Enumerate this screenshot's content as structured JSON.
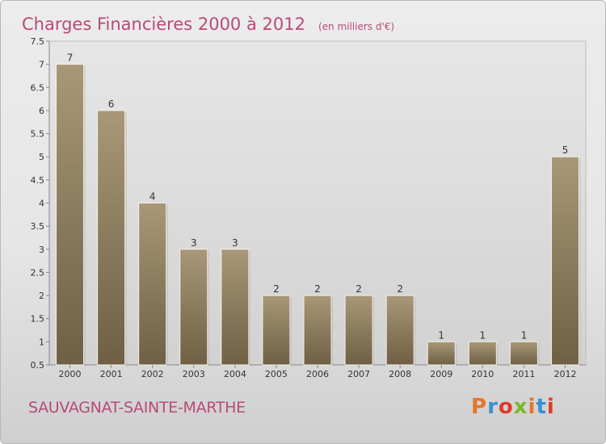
{
  "header": {
    "title": "Charges Financières 2000 à 2012",
    "unit": "(en milliers d'€)"
  },
  "footer": {
    "commune": "SAUVAGNAT-SAINTE-MARTHE",
    "logo": "Proxiti",
    "logo_colors": [
      "#e8742a",
      "#3a8fd0",
      "#e03a2a",
      "#7ab82a",
      "#e8742a",
      "#3a8fd0",
      "#e03a2a"
    ]
  },
  "colors": {
    "bar_light": "#a89878",
    "bar_dark": "#6f5f44",
    "accent": "#b84a78"
  },
  "chart_data": {
    "type": "bar",
    "title": "Charges Financières 2000 à 2012",
    "ylabel": "(en milliers d'€)",
    "categories": [
      "2000",
      "2001",
      "2002",
      "2003",
      "2004",
      "2005",
      "2006",
      "2007",
      "2008",
      "2009",
      "2010",
      "2011",
      "2012"
    ],
    "values": [
      7,
      6,
      4,
      3,
      3,
      2,
      2,
      2,
      2,
      1,
      1,
      1,
      5
    ],
    "ylim": [
      0.5,
      7.5
    ],
    "yticks": [
      "0.5",
      "1",
      "1.5",
      "2",
      "2.5",
      "3",
      "3.5",
      "4",
      "4.5",
      "5",
      "5.5",
      "6",
      "6.5",
      "7",
      "7.5"
    ],
    "grid": false,
    "legend": "none"
  }
}
